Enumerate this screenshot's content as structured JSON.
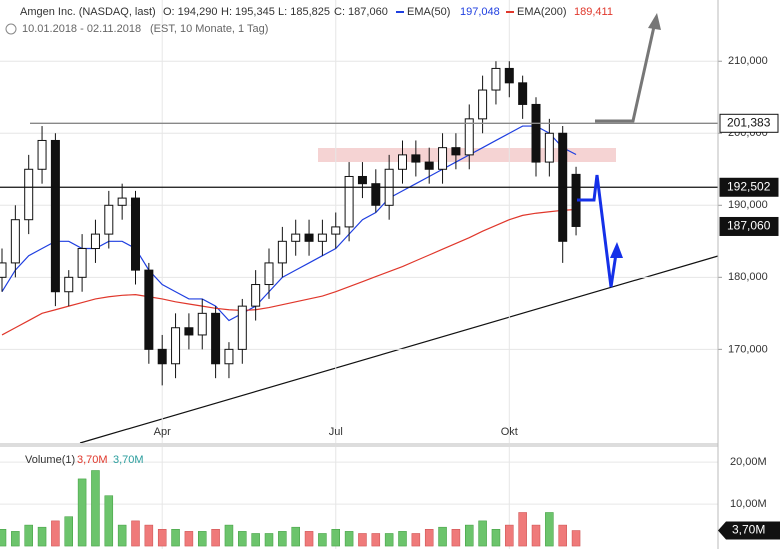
{
  "header": {
    "name": "Amgen Inc. (NASDAQ, last)",
    "ohlc": [
      "O: 194,290",
      "H: 195,345",
      "L: 185,825",
      "C: 187,060"
    ],
    "range": "10.01.2018 - 02.11.2018",
    "settings": "(EST, 10 Monate, 1 Tag)",
    "legend_values": [
      "197,048",
      "189,411"
    ]
  },
  "chart_data": [
    {
      "type": "candlestick",
      "categories": [
        null,
        null,
        null,
        null,
        null,
        null,
        null,
        null,
        null,
        null,
        null,
        null,
        "Apr",
        null,
        null,
        null,
        null,
        null,
        null,
        null,
        null,
        null,
        null,
        null,
        null,
        "Jul",
        null,
        null,
        null,
        null,
        null,
        null,
        null,
        null,
        null,
        null,
        null,
        null,
        "Okt",
        null,
        null,
        null,
        null,
        null
      ],
      "open": [
        180,
        182,
        188,
        195,
        199,
        178,
        180,
        184,
        186,
        190,
        191,
        181,
        170,
        168,
        173,
        172,
        175,
        168,
        170,
        176,
        179,
        182,
        185,
        186,
        185,
        186,
        187,
        194,
        193,
        190,
        195,
        197,
        196,
        195,
        198,
        197,
        202,
        206,
        209,
        207,
        204,
        196,
        200,
        194.29
      ],
      "high": [
        184,
        190,
        197,
        201,
        200,
        181,
        186,
        188,
        192,
        193,
        192,
        182,
        172,
        175,
        175,
        177,
        176,
        171,
        177,
        181,
        184,
        187,
        188,
        188,
        188,
        189,
        196,
        196,
        195,
        197,
        199,
        199,
        198,
        200,
        200,
        204,
        208,
        210,
        210,
        208,
        205,
        202,
        201,
        195.345
      ],
      "low": [
        178,
        180,
        186,
        193,
        176,
        176,
        178,
        182,
        184,
        188,
        179,
        168,
        165,
        166,
        170,
        170,
        166,
        166,
        168,
        174,
        177,
        180,
        183,
        183,
        183,
        184,
        185,
        191,
        189,
        188,
        193,
        194,
        193,
        193,
        195,
        195,
        200,
        204,
        205,
        202,
        194,
        194,
        182,
        185.825
      ],
      "close": [
        182,
        188,
        195,
        199,
        178,
        180,
        184,
        186,
        190,
        191,
        181,
        170,
        168,
        173,
        172,
        175,
        168,
        170,
        176,
        179,
        182,
        185,
        186,
        185,
        186,
        187,
        194,
        193,
        190,
        195,
        197,
        196,
        195,
        198,
        197,
        202,
        206,
        209,
        207,
        204,
        196,
        200,
        185,
        187.06
      ],
      "series": [
        {
          "name": "EMA(50)",
          "color": "#1f3fe0",
          "values": [
            178,
            181,
            183,
            184,
            185,
            185,
            184,
            184,
            185,
            185,
            184,
            181,
            179,
            178,
            177,
            177,
            176,
            174,
            175,
            176,
            178,
            180,
            181,
            182,
            183,
            184,
            186,
            188,
            189,
            191,
            192,
            193,
            194,
            195,
            196,
            197,
            198,
            199,
            200,
            201,
            201,
            200,
            198,
            197.048
          ]
        },
        {
          "name": "EMA(200)",
          "color": "#e0372b",
          "values": [
            172,
            173,
            174,
            175,
            175.5,
            176,
            176.5,
            177,
            177.3,
            177.5,
            177.6,
            177.3,
            177,
            176.6,
            176.3,
            176,
            175.7,
            175.5,
            175.4,
            175.5,
            175.8,
            176.2,
            176.6,
            177,
            177.4,
            178,
            178.7,
            179.4,
            180.1,
            180.8,
            181.5,
            182.3,
            183.1,
            183.9,
            184.7,
            185.5,
            186.4,
            187.2,
            188,
            188.6,
            188.9,
            189.1,
            189.3,
            189.411
          ]
        }
      ],
      "ylim": [
        157,
        218.5
      ],
      "yticks": [
        {
          "value": 170,
          "label": "170,000"
        },
        {
          "value": 180,
          "label": "180,000"
        },
        {
          "value": 190,
          "label": "190,000"
        },
        {
          "value": 200,
          "label": "200,000"
        },
        {
          "value": 210,
          "label": "210,000"
        }
      ],
      "levels": [
        {
          "value": 201.383,
          "label": "201,383"
        },
        {
          "value": 192.502,
          "label": "192,502"
        },
        {
          "value": 187.06,
          "label": "187,060"
        }
      ],
      "grid": true
    },
    {
      "type": "bar",
      "title": "Volume(1)",
      "legend_values": [
        "3,70M",
        "3,70M"
      ],
      "values": [
        4,
        3.5,
        5,
        4.5,
        6,
        7,
        16,
        18,
        12,
        5,
        6,
        5,
        4,
        4,
        3.5,
        3.5,
        4,
        5,
        3.5,
        3,
        3,
        3.5,
        4.5,
        3.5,
        3,
        4,
        3.5,
        3,
        3,
        3,
        3.5,
        3,
        4,
        4.5,
        4,
        5,
        6,
        4,
        5,
        8,
        5,
        8,
        5,
        3.7
      ],
      "up_color": "#6cc46c",
      "down_color": "#ef7a7a",
      "ylim": [
        -0.7,
        23.6
      ],
      "yticks": [
        {
          "value": 10,
          "label": "10,00M"
        },
        {
          "value": 20,
          "label": "20,00M"
        }
      ],
      "last": {
        "value": 3.7,
        "label": "3,70M"
      }
    }
  ]
}
